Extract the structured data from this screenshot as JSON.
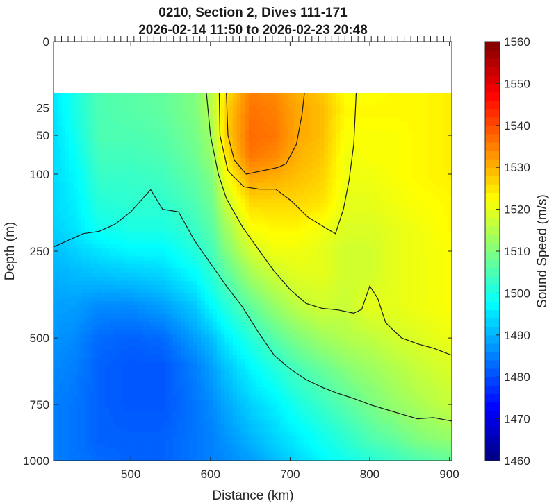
{
  "chart_data": {
    "type": "heatmap",
    "title": "0210, Section 2, Dives 111-171",
    "subtitle": "2026-02-14 11:50 to 2026-02-23 20:48",
    "xlabel": "Distance (km)",
    "ylabel": "Depth (m)",
    "colorbar_label": "Sound Speed (m/s)",
    "xlim": [
      403,
      903
    ],
    "ylim": [
      0,
      1000
    ],
    "y_scale": "square-root",
    "y_reversed": true,
    "data_top_depth": 15,
    "x_ticks": [
      500,
      600,
      700,
      800,
      900
    ],
    "x_tick_labels": [
      "500",
      "600",
      "700",
      "800",
      "900"
    ],
    "y_ticks": [
      0,
      25,
      50,
      100,
      250,
      500,
      750,
      1000
    ],
    "y_tick_labels": [
      "0",
      "25",
      "50",
      "100",
      "250",
      "500",
      "750",
      "1000"
    ],
    "color_range": [
      1460,
      1560
    ],
    "colorbar_ticks": [
      1460,
      1470,
      1480,
      1490,
      1500,
      1510,
      1520,
      1530,
      1540,
      1550,
      1560
    ],
    "colorbar_tick_labels": [
      "1460",
      "1470",
      "1480",
      "1490",
      "1500",
      "1510",
      "1520",
      "1530",
      "1540",
      "1550",
      "1560"
    ],
    "colormap": "jet",
    "contour_levels": [
      1500,
      1520,
      1530
    ],
    "contours": [
      {
        "level": 1500,
        "points": [
          [
            403,
            240
          ],
          [
            440,
            210
          ],
          [
            460,
            205
          ],
          [
            480,
            190
          ],
          [
            500,
            165
          ],
          [
            515,
            140
          ],
          [
            525,
            125
          ],
          [
            540,
            160
          ],
          [
            560,
            165
          ],
          [
            580,
            225
          ],
          [
            600,
            280
          ],
          [
            620,
            340
          ],
          [
            640,
            400
          ],
          [
            660,
            480
          ],
          [
            680,
            560
          ],
          [
            700,
            610
          ],
          [
            720,
            650
          ],
          [
            740,
            680
          ],
          [
            760,
            705
          ],
          [
            780,
            725
          ],
          [
            800,
            750
          ],
          [
            820,
            770
          ],
          [
            840,
            790
          ],
          [
            860,
            810
          ],
          [
            880,
            805
          ],
          [
            903,
            820
          ]
        ]
      },
      {
        "level": 1520,
        "points": [
          [
            595,
            15
          ],
          [
            600,
            50
          ],
          [
            610,
            100
          ],
          [
            620,
            140
          ],
          [
            640,
            195
          ],
          [
            660,
            245
          ],
          [
            680,
            300
          ],
          [
            700,
            350
          ],
          [
            720,
            390
          ],
          [
            740,
            405
          ],
          [
            760,
            410
          ],
          [
            780,
            420
          ],
          [
            790,
            408
          ],
          [
            800,
            340
          ],
          [
            810,
            375
          ],
          [
            820,
            450
          ],
          [
            840,
            500
          ],
          [
            860,
            520
          ],
          [
            880,
            535
          ],
          [
            903,
            560
          ]
        ]
      },
      {
        "level": 1530,
        "points": [
          [
            611,
            15
          ],
          [
            612,
            50
          ],
          [
            622,
            95
          ],
          [
            642,
            120
          ],
          [
            662,
            124
          ],
          [
            682,
            124
          ],
          [
            702,
            145
          ],
          [
            722,
            175
          ],
          [
            742,
            195
          ],
          [
            757,
            210
          ],
          [
            767,
            160
          ],
          [
            774,
            110
          ],
          [
            780,
            60
          ],
          [
            783,
            15
          ]
        ]
      },
      {
        "level": 1530,
        "points": [
          [
            620,
            15
          ],
          [
            622,
            50
          ],
          [
            630,
            80
          ],
          [
            645,
            100
          ],
          [
            665,
            95
          ],
          [
            685,
            90
          ],
          [
            695,
            85
          ],
          [
            708,
            60
          ],
          [
            715,
            30
          ],
          [
            718,
            15
          ]
        ]
      }
    ],
    "field_grid": {
      "depth": [
        15,
        25,
        50,
        75,
        100,
        150,
        200,
        250,
        300,
        400,
        500,
        600,
        750,
        900,
        1000
      ],
      "distance": [
        403,
        430,
        460,
        500,
        540,
        580,
        600,
        620,
        650,
        680,
        710,
        740,
        770,
        800,
        830,
        860,
        903
      ],
      "values": [
        [
          1495,
          1500,
          1505,
          1506,
          1507,
          1510,
          1515,
          1525,
          1535,
          1534,
          1530,
          1528,
          1522,
          1522,
          1523,
          1523,
          1524
        ],
        [
          1495,
          1500,
          1505,
          1506,
          1507,
          1510,
          1515,
          1527,
          1536,
          1535,
          1531,
          1529,
          1523,
          1523,
          1523,
          1523,
          1524
        ],
        [
          1494,
          1499,
          1505,
          1505,
          1506,
          1509,
          1513,
          1527,
          1537,
          1536,
          1531,
          1529,
          1522,
          1522,
          1522,
          1523,
          1524
        ],
        [
          1494,
          1498,
          1504,
          1504,
          1505,
          1508,
          1512,
          1525,
          1536,
          1534,
          1530,
          1528,
          1521,
          1522,
          1522,
          1523,
          1524
        ],
        [
          1494,
          1497,
          1503,
          1503,
          1504,
          1507,
          1510,
          1522,
          1532,
          1531,
          1529,
          1527,
          1521,
          1521,
          1522,
          1523,
          1524
        ],
        [
          1494,
          1496,
          1501,
          1502,
          1502,
          1505,
          1508,
          1517,
          1526,
          1526,
          1526,
          1525,
          1520,
          1520,
          1521,
          1522,
          1523
        ],
        [
          1493,
          1495,
          1499,
          1500,
          1500,
          1503,
          1506,
          1513,
          1522,
          1523,
          1523,
          1521,
          1519,
          1519,
          1520,
          1521,
          1523
        ],
        [
          1491,
          1493,
          1495,
          1497,
          1497,
          1501,
          1504,
          1510,
          1518,
          1521,
          1521,
          1520,
          1518,
          1518,
          1520,
          1521,
          1522
        ],
        [
          1490,
          1491,
          1492,
          1493,
          1494,
          1498,
          1502,
          1507,
          1514,
          1518,
          1520,
          1520,
          1518,
          1518,
          1520,
          1521,
          1522
        ],
        [
          1488,
          1488,
          1486,
          1486,
          1488,
          1492,
          1497,
          1501,
          1507,
          1512,
          1516,
          1518,
          1517,
          1520,
          1520,
          1521,
          1522
        ],
        [
          1487,
          1486,
          1483,
          1482,
          1483,
          1488,
          1491,
          1496,
          1501,
          1506,
          1510,
          1513,
          1515,
          1516,
          1518,
          1519,
          1521
        ],
        [
          1486,
          1485,
          1482,
          1481,
          1481,
          1485,
          1488,
          1492,
          1497,
          1501,
          1505,
          1508,
          1511,
          1513,
          1515,
          1517,
          1519
        ],
        [
          1485,
          1484,
          1482,
          1481,
          1481,
          1484,
          1486,
          1489,
          1493,
          1496,
          1500,
          1503,
          1506,
          1509,
          1512,
          1514,
          1517
        ],
        [
          1485,
          1484,
          1482,
          1482,
          1482,
          1484,
          1485,
          1487,
          1490,
          1493,
          1496,
          1499,
          1502,
          1505,
          1507,
          1510,
          1512
        ],
        [
          1485,
          1484,
          1483,
          1482,
          1482,
          1484,
          1485,
          1486,
          1488,
          1491,
          1494,
          1497,
          1499,
          1501,
          1503,
          1505,
          1507
        ]
      ]
    }
  }
}
